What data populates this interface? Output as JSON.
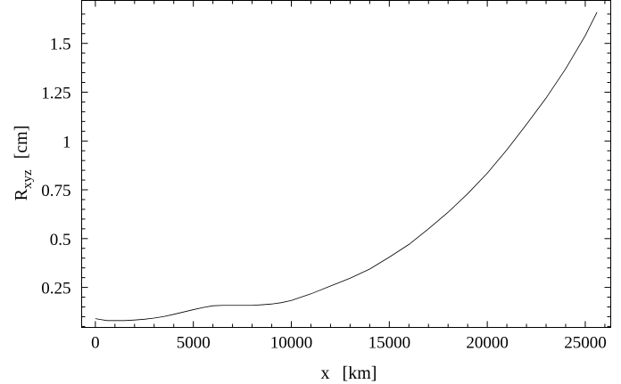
{
  "chart_data": {
    "type": "line",
    "title": "",
    "xlabel_parts": {
      "main": "x",
      "unit": "[km]"
    },
    "ylabel_parts": {
      "main": "R",
      "sub": "xyz",
      "unit": "[cm]"
    },
    "xlim": [
      -700,
      26300
    ],
    "ylim": [
      0.045,
      1.72
    ],
    "x_ticks": [
      0,
      5000,
      10000,
      15000,
      20000,
      25000
    ],
    "x_tick_labels": [
      "0",
      "5000",
      "10000",
      "15000",
      "20000",
      "25000"
    ],
    "y_ticks": [
      0.25,
      0.5,
      0.75,
      1,
      1.25,
      1.5
    ],
    "y_tick_labels": [
      "0.25",
      "0.5",
      "0.75",
      "1",
      "1.25",
      "1.5"
    ],
    "grid": false,
    "series": [
      {
        "x": [
          0,
          300,
          600,
          1000,
          1500,
          2000,
          2500,
          3000,
          3500,
          4000,
          4500,
          5000,
          5500,
          6000,
          6500,
          7000,
          7500,
          8000,
          8500,
          9000,
          9500,
          10000,
          11000,
          12000,
          13000,
          14000,
          15000,
          16000,
          17000,
          18000,
          19000,
          20000,
          21000,
          22000,
          23000,
          24000,
          25000,
          25600
        ],
        "y": [
          0.09,
          0.085,
          0.08,
          0.08,
          0.08,
          0.083,
          0.087,
          0.093,
          0.101,
          0.112,
          0.124,
          0.136,
          0.147,
          0.156,
          0.158,
          0.158,
          0.158,
          0.158,
          0.161,
          0.165,
          0.172,
          0.183,
          0.217,
          0.257,
          0.297,
          0.344,
          0.405,
          0.47,
          0.55,
          0.635,
          0.73,
          0.835,
          0.955,
          1.085,
          1.22,
          1.37,
          1.54,
          1.66
        ]
      }
    ]
  }
}
